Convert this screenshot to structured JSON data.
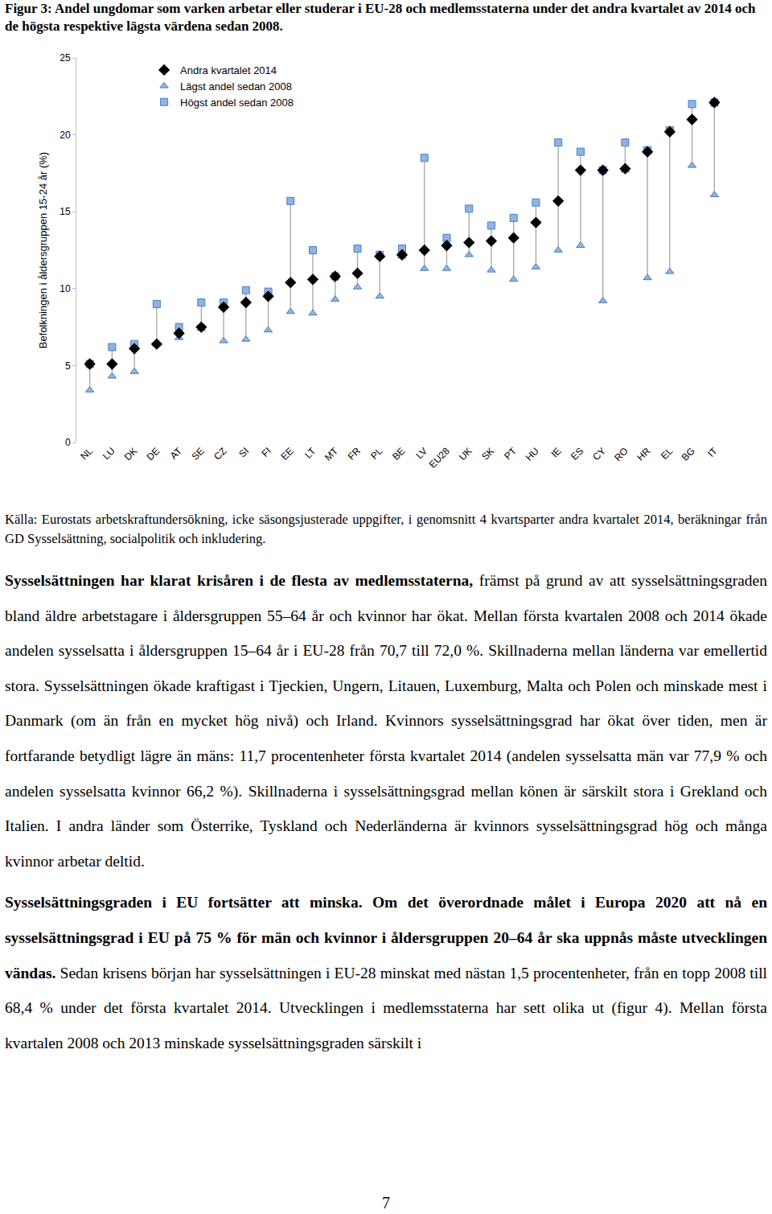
{
  "caption": "Figur 3: Andel ungdomar som varken arbetar eller studerar i EU-28 och medlemsstaterna under det andra kvartalet av 2014 och de högsta respektive lägsta värdena sedan 2008.",
  "chart_data": {
    "type": "scatter",
    "ylabel": "Befolkningen i åldersgruppen 15-24 år (%)",
    "categories": [
      "NL",
      "LU",
      "DK",
      "DE",
      "AT",
      "SE",
      "CZ",
      "SI",
      "FI",
      "EE",
      "LT",
      "MT",
      "FR",
      "PL",
      "BE",
      "LV",
      "EU28",
      "UK",
      "SK",
      "PT",
      "HU",
      "IE",
      "ES",
      "CY",
      "RO",
      "HR",
      "EL",
      "BG",
      "IT"
    ],
    "series": [
      {
        "name": "Andra kvartalet 2014",
        "color": "#000000",
        "marker": "diamond",
        "values": [
          5.1,
          5.1,
          6.1,
          6.4,
          7.1,
          7.5,
          8.8,
          9.1,
          9.5,
          10.4,
          10.6,
          10.8,
          11.0,
          12.1,
          12.2,
          12.5,
          12.8,
          13.0,
          13.1,
          13.3,
          14.3,
          15.7,
          17.7,
          17.7,
          17.8,
          18.9,
          20.2,
          21.0,
          22.1
        ]
      },
      {
        "name": "Lägst andel sedan 2008",
        "color": "#8fb4e3",
        "marker": "triangle-up",
        "values": [
          3.4,
          4.3,
          4.6,
          6.4,
          6.8,
          7.4,
          6.6,
          6.7,
          7.3,
          8.5,
          8.4,
          9.3,
          10.1,
          9.5,
          12.1,
          11.3,
          11.3,
          12.2,
          11.2,
          10.6,
          11.4,
          12.5,
          12.8,
          9.2,
          17.7,
          10.7,
          11.1,
          18.0,
          16.1
        ]
      },
      {
        "name": "Högst andel sedan 2008",
        "color": "#8fb4e3",
        "marker": "square",
        "values": [
          5.1,
          6.2,
          6.4,
          9.0,
          7.5,
          9.1,
          9.1,
          9.9,
          9.8,
          15.7,
          12.5,
          10.8,
          12.6,
          12.2,
          12.6,
          18.5,
          13.3,
          15.2,
          14.1,
          14.6,
          15.6,
          19.5,
          18.9,
          17.7,
          19.5,
          19.0,
          20.3,
          22.0,
          22.1
        ]
      }
    ],
    "ylim": [
      0,
      25
    ],
    "yticks": [
      0,
      5,
      10,
      15,
      20,
      25
    ],
    "grid": false,
    "legend": "top-left"
  },
  "source": "Källa: Eurostats arbetskraftundersökning, icke säsongsjusterade uppgifter, i genomsnitt 4 kvartsparter andra kvartalet 2014, beräkningar från GD Sysselsättning, socialpolitik och inkludering.",
  "paragraphs": [
    [
      {
        "text": "Sysselsättningen har klarat krisåren i de flesta av medlemsstaterna,",
        "bold": true
      },
      {
        "text": " främst på grund av att sysselsättningsgraden bland äldre arbetstagare i åldersgruppen 55–64 år och kvinnor har ökat. Mellan första kvartalen 2008 och 2014 ökade andelen sysselsatta i åldersgruppen 15–64 år i EU-28 från 70,7 till 72,0 %. Skillnaderna mellan länderna var emellertid stora. Sysselsättningen ökade kraftigast i Tjeckien, Ungern, Litauen, Luxemburg, Malta och Polen och minskade mest i Danmark (om än från en mycket hög nivå) och Irland. Kvinnors sysselsättningsgrad har ökat över tiden, men är fortfarande betydligt lägre än mäns: 11,7 procentenheter första kvartalet 2014 (andelen sysselsatta män var 77,9 % och andelen sysselsatta kvinnor 66,2 %). Skillnaderna i sysselsättningsgrad mellan könen är särskilt stora i Grekland och Italien. I andra länder som Österrike, Tyskland och Nederländerna är kvinnors sysselsättningsgrad hög och många kvinnor arbetar deltid.",
        "bold": false
      }
    ],
    [
      {
        "text": "Sysselsättningsgraden i EU fortsätter att minska. Om det överordnade målet i Europa 2020 att nå en sysselsättningsgrad i EU på 75 % för män och kvinnor i åldersgruppen 20–64 år ska uppnås måste utvecklingen vändas.",
        "bold": true
      },
      {
        "text": " Sedan krisens början har sysselsättningen i EU-28 minskat med nästan 1,5 procentenheter, från en topp 2008 till 68,4 % under det första kvartalet 2014. Utvecklingen i medlemsstaterna har sett olika ut (figur 4). Mellan första kvartalen 2008 och 2013 minskade sysselsättningsgraden särskilt i",
        "bold": false
      }
    ]
  ],
  "page_number": "7"
}
